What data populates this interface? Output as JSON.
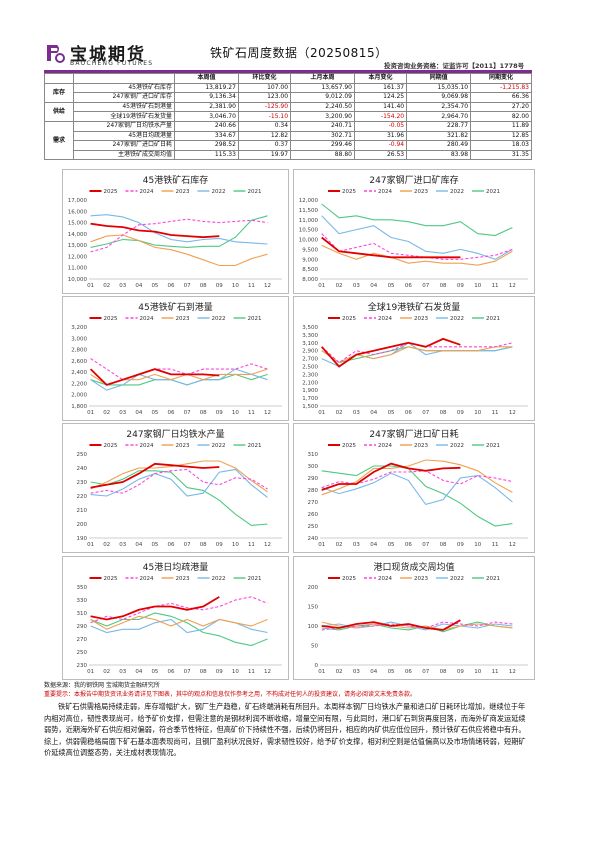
{
  "header": {
    "logo_cn": "宝城期货",
    "logo_en": "BAOCHENG FUTURES",
    "title": "铁矿石周度数据（20250815）",
    "license": "投资咨询业务资格：证监许可【2011】1778号"
  },
  "table": {
    "columns": [
      "本周值",
      "环比变化",
      "上月本周",
      "本月变化",
      "同期值",
      "同期变化"
    ],
    "groups": [
      {
        "category": "库存",
        "rows": [
          {
            "label": "45港铁矿石库存",
            "values": [
              "13,819.27",
              "107.00",
              "13,657.90",
              "161.37",
              "15,035.10",
              "-1,215.83"
            ]
          },
          {
            "label": "247家钢厂进口矿库存",
            "values": [
              "9,136.34",
              "123.00",
              "9,012.09",
              "124.25",
              "9,069.98",
              "66.36"
            ]
          }
        ]
      },
      {
        "category": "供给",
        "rows": [
          {
            "label": "45港铁矿石到港量",
            "values": [
              "2,381.90",
              "-125.90",
              "2,240.50",
              "141.40",
              "2,354.70",
              "27.20"
            ]
          },
          {
            "label": "全球19港铁矿石发货量",
            "values": [
              "3,046.70",
              "-15.10",
              "3,200.90",
              "-154.20",
              "2,964.70",
              "82.00"
            ]
          }
        ]
      },
      {
        "category": "需求",
        "rows": [
          {
            "label": "247家钢厂日均铁水产量",
            "values": [
              "240.66",
              "0.34",
              "240.71",
              "-0.05",
              "228.77",
              "11.89"
            ]
          },
          {
            "label": "45港日均疏港量",
            "values": [
              "334.67",
              "12.82",
              "302.71",
              "31.96",
              "321.82",
              "12.85"
            ]
          },
          {
            "label": "247家钢厂进口矿日耗",
            "values": [
              "298.52",
              "0.37",
              "299.46",
              "-0.94",
              "280.49",
              "18.03"
            ]
          },
          {
            "label": "主港铁矿成交周均值",
            "values": [
              "115.33",
              "19.97",
              "88.80",
              "26.53",
              "83.98",
              "31.35"
            ]
          }
        ]
      }
    ]
  },
  "legend": [
    "2025",
    "2024",
    "2023",
    "2022",
    "2021"
  ],
  "colors": {
    "2025": "#e00000",
    "2024": "#ff44dd",
    "2023": "#f0a050",
    "2022": "#78b8e8",
    "2021": "#4fc884",
    "rule": "#7b2e8e"
  },
  "months": [
    "01",
    "02",
    "03",
    "04",
    "05",
    "06",
    "07",
    "08",
    "09",
    "10",
    "11",
    "12"
  ],
  "chart_data": [
    {
      "type": "line",
      "title": "45港铁矿石库存",
      "ylim": [
        10000,
        17000
      ],
      "yticks": [
        "10,000",
        "11,000",
        "12,000",
        "13,000",
        "14,000",
        "15,000",
        "16,000",
        "17,000"
      ],
      "series": [
        {
          "name": "2025",
          "values": [
            14900,
            14700,
            14600,
            14300,
            14200,
            13900,
            13800,
            13700,
            13800,
            null,
            null,
            null
          ]
        },
        {
          "name": "2024",
          "values": [
            12400,
            12800,
            13900,
            14800,
            14900,
            15100,
            15300,
            15100,
            15000,
            15100,
            15200,
            15000
          ]
        },
        {
          "name": "2023",
          "values": [
            13300,
            13800,
            13900,
            13400,
            12800,
            12600,
            12200,
            11700,
            11200,
            11200,
            11800,
            12200
          ]
        },
        {
          "name": "2022",
          "values": [
            15600,
            15700,
            15500,
            15000,
            14100,
            13500,
            13300,
            13500,
            13600,
            13300,
            13200,
            13100
          ]
        },
        {
          "name": "2021",
          "values": [
            12800,
            13100,
            13500,
            13400,
            13000,
            12900,
            12800,
            12900,
            12900,
            13700,
            15200,
            15600
          ]
        }
      ]
    },
    {
      "type": "line",
      "title": "247家钢厂进口矿库存",
      "ylim": [
        8000,
        12000
      ],
      "yticks": [
        "8,000",
        "8,500",
        "9,000",
        "9,500",
        "10,000",
        "10,500",
        "11,000",
        "11,500",
        "12,000"
      ],
      "series": [
        {
          "name": "2025",
          "values": [
            10100,
            9400,
            9300,
            9200,
            9100,
            9100,
            9100,
            9100,
            9100,
            null,
            null,
            null
          ]
        },
        {
          "name": "2024",
          "values": [
            10300,
            9400,
            9600,
            9800,
            9300,
            9200,
            9100,
            9000,
            9000,
            9100,
            9200,
            9500
          ]
        },
        {
          "name": "2023",
          "values": [
            9700,
            9300,
            9000,
            9300,
            9100,
            8800,
            8900,
            8800,
            8800,
            8700,
            8900,
            9400
          ]
        },
        {
          "name": "2022",
          "values": [
            11200,
            10300,
            10500,
            10700,
            10100,
            9900,
            9400,
            9300,
            9500,
            9300,
            9000,
            9500
          ]
        },
        {
          "name": "2021",
          "values": [
            11800,
            11100,
            11200,
            11000,
            11000,
            10900,
            10700,
            10700,
            10900,
            10300,
            10200,
            10600
          ]
        }
      ]
    },
    {
      "type": "line",
      "title": "45港铁矿石到港量",
      "ylim": [
        1800,
        3300
      ],
      "yticks": [
        "1,800",
        "2,000",
        "2,200",
        "2,400",
        "2,600",
        "2,800",
        "3,000",
        "3,200"
      ],
      "series": [
        {
          "name": "2025",
          "values": [
            2500,
            2200,
            2300,
            2400,
            2500,
            2400,
            2400,
            2400,
            2380,
            null,
            null,
            null
          ]
        },
        {
          "name": "2024",
          "values": [
            2700,
            2500,
            2300,
            2400,
            2500,
            2500,
            2400,
            2500,
            2500,
            2500,
            2600,
            2500
          ]
        },
        {
          "name": "2023",
          "values": [
            2400,
            2200,
            2300,
            2300,
            2400,
            2300,
            2400,
            2300,
            2400,
            2400,
            2400,
            2500
          ]
        },
        {
          "name": "2022",
          "values": [
            2300,
            2100,
            2200,
            2400,
            2300,
            2300,
            2200,
            2300,
            2300,
            2500,
            2400,
            2300
          ]
        },
        {
          "name": "2021",
          "values": [
            2300,
            2200,
            2200,
            2200,
            2300,
            2300,
            2200,
            2300,
            2300,
            2400,
            2300,
            2400
          ]
        }
      ]
    },
    {
      "type": "line",
      "title": "全球19港铁矿石发货量",
      "ylim": [
        1500,
        3500
      ],
      "yticks": [
        "1,500",
        "1,700",
        "1,900",
        "2,100",
        "2,300",
        "2,500",
        "2,700",
        "2,900",
        "3,100",
        "3,300",
        "3,500"
      ],
      "series": [
        {
          "name": "2025",
          "values": [
            3000,
            2500,
            2800,
            2900,
            3000,
            3100,
            3000,
            3200,
            3050,
            null,
            null,
            null
          ]
        },
        {
          "name": "2024",
          "values": [
            3000,
            2600,
            2900,
            2800,
            2900,
            3100,
            3000,
            3000,
            3000,
            3000,
            3000,
            3100
          ]
        },
        {
          "name": "2023",
          "values": [
            2900,
            2600,
            2800,
            2700,
            2800,
            3000,
            2900,
            2900,
            2900,
            2900,
            3000,
            3000
          ]
        },
        {
          "name": "2022",
          "values": [
            2700,
            2500,
            2800,
            2700,
            2800,
            3100,
            2800,
            2900,
            2900,
            2900,
            2900,
            3000
          ]
        },
        {
          "name": "2021",
          "values": [
            2900,
            2600,
            2700,
            2800,
            2900,
            3000,
            2900,
            2900,
            2900,
            2900,
            2900,
            3000
          ]
        }
      ]
    },
    {
      "type": "line",
      "title": "247家钢厂日均铁水产量",
      "ylim": [
        190,
        250
      ],
      "yticks": [
        "190",
        "200",
        "210",
        "220",
        "230",
        "240",
        "250"
      ],
      "series": [
        {
          "name": "2025",
          "values": [
            226,
            228,
            230,
            236,
            243,
            242,
            241,
            240,
            240.7,
            null,
            null,
            null
          ]
        },
        {
          "name": "2024",
          "values": [
            222,
            224,
            222,
            228,
            236,
            238,
            239,
            230,
            228,
            233,
            232,
            225
          ]
        },
        {
          "name": "2023",
          "values": [
            225,
            230,
            236,
            240,
            240,
            241,
            243,
            245,
            245,
            240,
            231,
            223
          ]
        },
        {
          "name": "2022",
          "values": [
            221,
            220,
            225,
            232,
            236,
            232,
            220,
            222,
            237,
            239,
            228,
            219
          ]
        },
        {
          "name": "2021",
          "values": [
            230,
            228,
            232,
            238,
            238,
            237,
            226,
            224,
            217,
            207,
            199,
            200
          ]
        }
      ]
    },
    {
      "type": "line",
      "title": "247家钢厂进口矿日耗",
      "ylim": [
        240,
        310
      ],
      "yticks": [
        "240",
        "250",
        "260",
        "270",
        "280",
        "290",
        "300",
        "310"
      ],
      "series": [
        {
          "name": "2025",
          "values": [
            280,
            285,
            285,
            295,
            302,
            298,
            296,
            298,
            298.5,
            null,
            null,
            null
          ]
        },
        {
          "name": "2024",
          "values": [
            282,
            287,
            285,
            289,
            295,
            295,
            296,
            288,
            285,
            292,
            290,
            287
          ]
        },
        {
          "name": "2023",
          "values": [
            276,
            281,
            287,
            298,
            298,
            300,
            305,
            304,
            301,
            296,
            286,
            278
          ]
        },
        {
          "name": "2022",
          "values": [
            282,
            277,
            281,
            286,
            294,
            288,
            268,
            272,
            290,
            292,
            282,
            270
          ]
        },
        {
          "name": "2021",
          "values": [
            296,
            294,
            292,
            300,
            300,
            298,
            283,
            277,
            269,
            258,
            250,
            252
          ]
        }
      ]
    },
    {
      "type": "line",
      "title": "45港日均疏港量",
      "ylim": [
        230,
        350
      ],
      "yticks": [
        "230",
        "250",
        "270",
        "290",
        "310",
        "330",
        "350"
      ],
      "series": [
        {
          "name": "2025",
          "values": [
            305,
            300,
            305,
            315,
            320,
            320,
            315,
            320,
            334.7,
            null,
            null,
            null
          ]
        },
        {
          "name": "2024",
          "values": [
            295,
            305,
            300,
            310,
            320,
            325,
            318,
            315,
            320,
            330,
            335,
            325
          ]
        },
        {
          "name": "2023",
          "values": [
            300,
            285,
            295,
            305,
            300,
            290,
            300,
            290,
            300,
            295,
            290,
            300
          ]
        },
        {
          "name": "2022",
          "values": [
            290,
            280,
            285,
            285,
            295,
            300,
            280,
            285,
            300,
            295,
            285,
            280
          ]
        },
        {
          "name": "2021",
          "values": [
            300,
            290,
            300,
            300,
            310,
            305,
            295,
            280,
            275,
            265,
            260,
            270
          ]
        }
      ]
    },
    {
      "type": "line",
      "title": "港口现货成交周均值",
      "ylim": [
        0,
        200
      ],
      "yticks": [
        "0",
        "50",
        "100",
        "150",
        "200"
      ],
      "series": [
        {
          "name": "2025",
          "values": [
            100,
            95,
            105,
            110,
            100,
            105,
            95,
            90,
            115,
            null,
            null,
            null
          ]
        },
        {
          "name": "2024",
          "values": [
            90,
            95,
            100,
            100,
            105,
            100,
            95,
            110,
            105,
            100,
            110,
            105
          ]
        },
        {
          "name": "2023",
          "values": [
            110,
            100,
            95,
            105,
            100,
            95,
            100,
            90,
            100,
            105,
            100,
            95
          ]
        },
        {
          "name": "2022",
          "values": [
            100,
            105,
            95,
            100,
            110,
            100,
            90,
            105,
            100,
            95,
            105,
            100
          ]
        },
        {
          "name": "2021",
          "values": [
            95,
            90,
            100,
            105,
            95,
            90,
            100,
            85,
            100,
            110,
            100,
            95
          ]
        }
      ]
    }
  ],
  "source": "数据来源：我的钢铁网 宝城期货金融研究所",
  "disclaimer": "重要提示：本报告中期货资讯业务请详见下图表，其中的观点和信息仅作参考之用，不构成对任何人的投资建议，请务必阅读文末免责条款。",
  "body": "铁矿石供需格局持续走弱，库存增幅扩大，钢厂生产趋稳，矿石终端消耗有所回升。本周样本钢厂日均铁水产量和进口矿日耗环比增加，继续位于年内相对高位，韧性表现尚可，给予矿价支撑，但需注意的是钢材利润不断收缩，增量空间有限，与此同时，港口矿石到货再度回落，而海外矿商发运延续弱势，近期海外矿石供应相对偏弱，符合季节性特征，但高矿价下持续性不强，后续仍将回升，相应的内矿供应低位回升，预计铁矿石供应将稳中有升。综上，供弱需稳格局面下矿石基本面表现尚可，且钢厂盈利状况良好，需求韧性较好，给予矿价支撑，相对利空则是估值偏高以及市场情绪转弱，短期矿价延续高位调整态势，关注成材表现情况。"
}
